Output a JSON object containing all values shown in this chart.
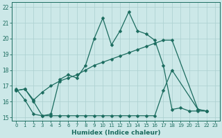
{
  "xlabel": "Humidex (Indice chaleur)",
  "xlim": [
    -0.5,
    23.5
  ],
  "ylim": [
    14.8,
    22.3
  ],
  "yticks": [
    15,
    16,
    17,
    18,
    19,
    20,
    21,
    22
  ],
  "xticks": [
    0,
    1,
    2,
    3,
    4,
    5,
    6,
    7,
    8,
    9,
    10,
    11,
    12,
    13,
    14,
    15,
    16,
    17,
    18,
    19,
    20,
    21,
    22,
    23
  ],
  "bg_color": "#cce8e8",
  "line_color": "#1a6b5e",
  "grid_color": "#aacfcf",
  "s1_x": [
    0,
    1,
    2,
    3,
    4,
    5,
    6,
    7,
    8,
    9,
    10,
    11,
    12,
    13,
    14,
    15,
    16,
    17,
    18,
    19,
    20,
    21,
    22
  ],
  "s1_y": [
    16.7,
    16.8,
    16.0,
    15.1,
    15.2,
    17.4,
    17.7,
    17.5,
    18.3,
    20.0,
    21.3,
    19.6,
    20.5,
    21.7,
    20.5,
    20.3,
    19.9,
    18.3,
    15.5,
    15.6,
    15.4,
    15.4,
    15.4
  ],
  "s2_x": [
    0,
    1,
    2,
    3,
    4,
    5,
    6,
    7,
    8,
    9,
    10,
    11,
    12,
    13,
    14,
    15,
    16,
    17,
    18,
    21,
    22
  ],
  "s2_y": [
    16.7,
    16.8,
    16.1,
    16.6,
    17.0,
    17.3,
    17.5,
    17.7,
    18.0,
    18.3,
    18.5,
    18.7,
    18.9,
    19.1,
    19.3,
    19.5,
    19.7,
    19.9,
    19.9,
    15.5,
    15.4
  ],
  "s3_x": [
    0,
    1,
    2,
    3,
    4,
    5,
    6,
    7,
    8,
    9,
    10,
    11,
    12,
    13,
    14,
    15,
    16,
    17,
    18,
    21,
    22
  ],
  "s3_y": [
    16.8,
    16.1,
    15.2,
    15.1,
    15.1,
    15.1,
    15.1,
    15.1,
    15.1,
    15.1,
    15.1,
    15.1,
    15.1,
    15.1,
    15.1,
    15.1,
    15.1,
    16.7,
    18.0,
    15.5,
    15.4
  ]
}
